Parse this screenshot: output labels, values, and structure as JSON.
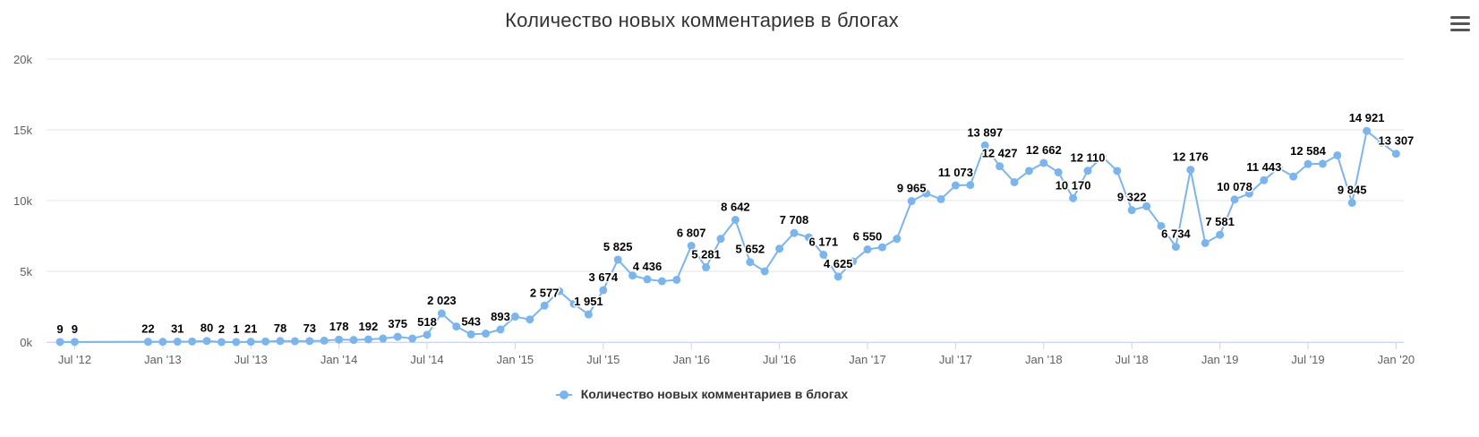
{
  "chart_data": {
    "type": "line",
    "title": "Количество новых комментариев в блогах",
    "xlabel": "",
    "ylabel": "",
    "ylim": [
      0,
      20000
    ],
    "yticks": [
      0,
      5000,
      10000,
      15000,
      20000
    ],
    "ytick_labels": [
      "0k",
      "5k",
      "10k",
      "15k",
      "20k"
    ],
    "xticks": [
      {
        "date": "2012-07",
        "label": "Jul '12"
      },
      {
        "date": "2013-01",
        "label": "Jan '13"
      },
      {
        "date": "2013-07",
        "label": "Jul '13"
      },
      {
        "date": "2014-01",
        "label": "Jan '14"
      },
      {
        "date": "2014-07",
        "label": "Jul '14"
      },
      {
        "date": "2015-01",
        "label": "Jan '15"
      },
      {
        "date": "2015-07",
        "label": "Jul '15"
      },
      {
        "date": "2016-01",
        "label": "Jan '16"
      },
      {
        "date": "2016-07",
        "label": "Jul '16"
      },
      {
        "date": "2017-01",
        "label": "Jan '17"
      },
      {
        "date": "2017-07",
        "label": "Jul '17"
      },
      {
        "date": "2018-01",
        "label": "Jan '18"
      },
      {
        "date": "2018-07",
        "label": "Jul '18"
      },
      {
        "date": "2019-01",
        "label": "Jan '19"
      },
      {
        "date": "2019-07",
        "label": "Jul '19"
      },
      {
        "date": "2020-01",
        "label": "Jan '20"
      }
    ],
    "grid": true,
    "legend_position": "bottom-center",
    "color": "#7cb5ec",
    "series": [
      {
        "name": "Количество новых комментариев в блогах",
        "points": [
          {
            "x": "2012-06",
            "y": 9,
            "label": "9"
          },
          {
            "x": "2012-07",
            "y": 9,
            "label": "9"
          },
          {
            "x": "2012-12",
            "y": 22,
            "label": "22"
          },
          {
            "x": "2013-01",
            "y": 20
          },
          {
            "x": "2013-02",
            "y": 31,
            "label": "31"
          },
          {
            "x": "2013-03",
            "y": 40
          },
          {
            "x": "2013-04",
            "y": 80,
            "label": "80"
          },
          {
            "x": "2013-05",
            "y": 2,
            "label": "2"
          },
          {
            "x": "2013-06",
            "y": 1,
            "label": "1"
          },
          {
            "x": "2013-07",
            "y": 21,
            "label": "21"
          },
          {
            "x": "2013-08",
            "y": 40
          },
          {
            "x": "2013-09",
            "y": 78,
            "label": "78"
          },
          {
            "x": "2013-10",
            "y": 60
          },
          {
            "x": "2013-11",
            "y": 73,
            "label": "73"
          },
          {
            "x": "2013-12",
            "y": 100
          },
          {
            "x": "2014-01",
            "y": 178,
            "label": "178"
          },
          {
            "x": "2014-02",
            "y": 150
          },
          {
            "x": "2014-03",
            "y": 192,
            "label": "192"
          },
          {
            "x": "2014-04",
            "y": 250
          },
          {
            "x": "2014-05",
            "y": 375,
            "label": "375"
          },
          {
            "x": "2014-06",
            "y": 250
          },
          {
            "x": "2014-07",
            "y": 518,
            "label": "518"
          },
          {
            "x": "2014-08",
            "y": 2023,
            "label": "2 023"
          },
          {
            "x": "2014-09",
            "y": 1100
          },
          {
            "x": "2014-10",
            "y": 543,
            "label": "543"
          },
          {
            "x": "2014-11",
            "y": 600
          },
          {
            "x": "2014-12",
            "y": 893,
            "label": "893"
          },
          {
            "x": "2015-01",
            "y": 1800
          },
          {
            "x": "2015-02",
            "y": 1600
          },
          {
            "x": "2015-03",
            "y": 2577,
            "label": "2 577"
          },
          {
            "x": "2015-04",
            "y": 3600
          },
          {
            "x": "2015-05",
            "y": 2700
          },
          {
            "x": "2015-06",
            "y": 1951,
            "label": "1 951"
          },
          {
            "x": "2015-07",
            "y": 3674,
            "label": "3 674"
          },
          {
            "x": "2015-08",
            "y": 5825,
            "label": "5 825"
          },
          {
            "x": "2015-09",
            "y": 4700
          },
          {
            "x": "2015-10",
            "y": 4436,
            "label": "4 436"
          },
          {
            "x": "2015-11",
            "y": 4300
          },
          {
            "x": "2015-12",
            "y": 4400
          },
          {
            "x": "2016-01",
            "y": 6807,
            "label": "6 807"
          },
          {
            "x": "2016-02",
            "y": 5281,
            "label": "5 281"
          },
          {
            "x": "2016-03",
            "y": 7300
          },
          {
            "x": "2016-04",
            "y": 8642,
            "label": "8 642"
          },
          {
            "x": "2016-05",
            "y": 5652,
            "label": "5 652"
          },
          {
            "x": "2016-06",
            "y": 5000
          },
          {
            "x": "2016-07",
            "y": 6600
          },
          {
            "x": "2016-08",
            "y": 7708,
            "label": "7 708"
          },
          {
            "x": "2016-09",
            "y": 7400
          },
          {
            "x": "2016-10",
            "y": 6171,
            "label": "6 171"
          },
          {
            "x": "2016-11",
            "y": 4625,
            "label": "4 625"
          },
          {
            "x": "2016-12",
            "y": 5700
          },
          {
            "x": "2017-01",
            "y": 6550,
            "label": "6 550"
          },
          {
            "x": "2017-02",
            "y": 6700
          },
          {
            "x": "2017-03",
            "y": 7300
          },
          {
            "x": "2017-04",
            "y": 9965,
            "label": "9 965"
          },
          {
            "x": "2017-05",
            "y": 10500
          },
          {
            "x": "2017-06",
            "y": 10100
          },
          {
            "x": "2017-07",
            "y": 11073,
            "label": "11 073"
          },
          {
            "x": "2017-08",
            "y": 11100
          },
          {
            "x": "2017-09",
            "y": 13897,
            "label": "13 897"
          },
          {
            "x": "2017-10",
            "y": 12427,
            "label": "12 427"
          },
          {
            "x": "2017-11",
            "y": 11300
          },
          {
            "x": "2017-12",
            "y": 12100
          },
          {
            "x": "2018-01",
            "y": 12662,
            "label": "12 662"
          },
          {
            "x": "2018-02",
            "y": 12000
          },
          {
            "x": "2018-03",
            "y": 10170,
            "label": "10 170"
          },
          {
            "x": "2018-04",
            "y": 12110,
            "label": "12 110"
          },
          {
            "x": "2018-05",
            "y": 13100
          },
          {
            "x": "2018-06",
            "y": 12100
          },
          {
            "x": "2018-07",
            "y": 9322,
            "label": "9 322"
          },
          {
            "x": "2018-08",
            "y": 9600
          },
          {
            "x": "2018-09",
            "y": 8200
          },
          {
            "x": "2018-10",
            "y": 6734,
            "label": "6 734"
          },
          {
            "x": "2018-11",
            "y": 12176,
            "label": "12 176"
          },
          {
            "x": "2018-12",
            "y": 7000
          },
          {
            "x": "2019-01",
            "y": 7581,
            "label": "7 581"
          },
          {
            "x": "2019-02",
            "y": 10078,
            "label": "10 078"
          },
          {
            "x": "2019-03",
            "y": 10500
          },
          {
            "x": "2019-04",
            "y": 11443,
            "label": "11 443"
          },
          {
            "x": "2019-05",
            "y": 12300
          },
          {
            "x": "2019-06",
            "y": 11700
          },
          {
            "x": "2019-07",
            "y": 12584,
            "label": "12 584"
          },
          {
            "x": "2019-08",
            "y": 12600
          },
          {
            "x": "2019-09",
            "y": 13200
          },
          {
            "x": "2019-10",
            "y": 9845,
            "label": "9 845"
          },
          {
            "x": "2019-11",
            "y": 14921,
            "label": "14 921"
          },
          {
            "x": "2019-12",
            "y": 14100
          },
          {
            "x": "2020-01",
            "y": 13307,
            "label": "13 307"
          }
        ]
      }
    ]
  },
  "legend": {
    "items": [
      {
        "label": "Количество новых комментариев в блогах",
        "color": "#7cb5ec"
      }
    ]
  },
  "toolbar": {
    "menu_icon": "hamburger-menu-icon"
  }
}
